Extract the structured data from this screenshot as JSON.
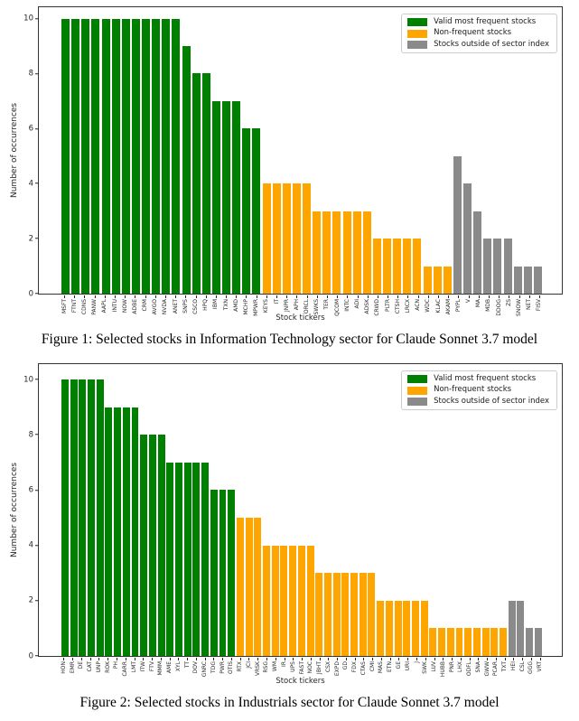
{
  "captions": {
    "figure1": "Figure 1: Selected stocks in Information Technology sector for Claude Sonnet 3.7 model",
    "figure2": "Figure 2: Selected stocks in Industrials sector for Claude Sonnet 3.7 model"
  },
  "colors": {
    "valid": "#008000",
    "nonfrequent": "#FFA500",
    "outside": "#8a8a8a"
  },
  "chart_data": [
    {
      "type": "bar",
      "title": "",
      "xlabel": "Stock tickers",
      "ylabel": "Number of occurrences",
      "ylim": [
        0,
        10
      ],
      "yticks": [
        0,
        2,
        4,
        6,
        8,
        10
      ],
      "grid": false,
      "legend_position": "top-right",
      "legend": [
        {
          "key": "valid",
          "label": "Valid most frequent stocks",
          "color": "#008000"
        },
        {
          "key": "nonfrequent",
          "label": "Non-frequent stocks",
          "color": "#FFA500"
        },
        {
          "key": "outside",
          "label": "Stocks outside of sector index",
          "color": "#8a8a8a"
        }
      ],
      "bars": [
        {
          "ticker": "MSFT",
          "value": 10,
          "group": "valid"
        },
        {
          "ticker": "FTNT",
          "value": 10,
          "group": "valid"
        },
        {
          "ticker": "CDNS",
          "value": 10,
          "group": "valid"
        },
        {
          "ticker": "PANW",
          "value": 10,
          "group": "valid"
        },
        {
          "ticker": "AAPL",
          "value": 10,
          "group": "valid"
        },
        {
          "ticker": "INTU",
          "value": 10,
          "group": "valid"
        },
        {
          "ticker": "NOW",
          "value": 10,
          "group": "valid"
        },
        {
          "ticker": "ADBE",
          "value": 10,
          "group": "valid"
        },
        {
          "ticker": "CRM",
          "value": 10,
          "group": "valid"
        },
        {
          "ticker": "AVGO",
          "value": 10,
          "group": "valid"
        },
        {
          "ticker": "NVDA",
          "value": 10,
          "group": "valid"
        },
        {
          "ticker": "ANET",
          "value": 10,
          "group": "valid"
        },
        {
          "ticker": "SNPS",
          "value": 9,
          "group": "valid"
        },
        {
          "ticker": "CSCO",
          "value": 8,
          "group": "valid"
        },
        {
          "ticker": "HPQ",
          "value": 8,
          "group": "valid"
        },
        {
          "ticker": "IBM",
          "value": 7,
          "group": "valid"
        },
        {
          "ticker": "TXN",
          "value": 7,
          "group": "valid"
        },
        {
          "ticker": "AMD",
          "value": 7,
          "group": "valid"
        },
        {
          "ticker": "MCHP",
          "value": 6,
          "group": "valid"
        },
        {
          "ticker": "MPWR",
          "value": 6,
          "group": "valid"
        },
        {
          "ticker": "KEYS",
          "value": 4,
          "group": "nonfrequent"
        },
        {
          "ticker": "IT",
          "value": 4,
          "group": "nonfrequent"
        },
        {
          "ticker": "JNPR",
          "value": 4,
          "group": "nonfrequent"
        },
        {
          "ticker": "APH",
          "value": 4,
          "group": "nonfrequent"
        },
        {
          "ticker": "ORCL",
          "value": 4,
          "group": "nonfrequent"
        },
        {
          "ticker": "SWKS",
          "value": 3,
          "group": "nonfrequent"
        },
        {
          "ticker": "TER",
          "value": 3,
          "group": "nonfrequent"
        },
        {
          "ticker": "QCOM",
          "value": 3,
          "group": "nonfrequent"
        },
        {
          "ticker": "INTC",
          "value": 3,
          "group": "nonfrequent"
        },
        {
          "ticker": "ADI",
          "value": 3,
          "group": "nonfrequent"
        },
        {
          "ticker": "ADSK",
          "value": 3,
          "group": "nonfrequent"
        },
        {
          "ticker": "CRWD",
          "value": 2,
          "group": "nonfrequent"
        },
        {
          "ticker": "PLTR",
          "value": 2,
          "group": "nonfrequent"
        },
        {
          "ticker": "CTSH",
          "value": 2,
          "group": "nonfrequent"
        },
        {
          "ticker": "LRCX",
          "value": 2,
          "group": "nonfrequent"
        },
        {
          "ticker": "ACN",
          "value": 2,
          "group": "nonfrequent"
        },
        {
          "ticker": "WDC",
          "value": 1,
          "group": "nonfrequent"
        },
        {
          "ticker": "KLAC",
          "value": 1,
          "group": "nonfrequent"
        },
        {
          "ticker": "AKAM",
          "value": 1,
          "group": "nonfrequent"
        },
        {
          "ticker": "PYPL",
          "value": 5,
          "group": "outside"
        },
        {
          "ticker": "V",
          "value": 4,
          "group": "outside"
        },
        {
          "ticker": "MA",
          "value": 3,
          "group": "outside"
        },
        {
          "ticker": "MDB",
          "value": 2,
          "group": "outside"
        },
        {
          "ticker": "DDOG",
          "value": 2,
          "group": "outside"
        },
        {
          "ticker": "ZS",
          "value": 2,
          "group": "outside"
        },
        {
          "ticker": "SNOW",
          "value": 1,
          "group": "outside"
        },
        {
          "ticker": "NET",
          "value": 1,
          "group": "outside"
        },
        {
          "ticker": "FISV",
          "value": 1,
          "group": "outside"
        }
      ]
    },
    {
      "type": "bar",
      "title": "",
      "xlabel": "Stock tickers",
      "ylabel": "Number of occurrences",
      "ylim": [
        0,
        10
      ],
      "yticks": [
        0,
        2,
        4,
        6,
        8,
        10
      ],
      "grid": false,
      "legend_position": "top-right",
      "legend": [
        {
          "key": "valid",
          "label": "Valid most frequent stocks",
          "color": "#008000"
        },
        {
          "key": "nonfrequent",
          "label": "Non-frequent stocks",
          "color": "#FFA500"
        },
        {
          "key": "outside",
          "label": "Stocks outside of sector index",
          "color": "#8a8a8a"
        }
      ],
      "bars": [
        {
          "ticker": "HON",
          "value": 10,
          "group": "valid"
        },
        {
          "ticker": "EMR",
          "value": 10,
          "group": "valid"
        },
        {
          "ticker": "DE",
          "value": 10,
          "group": "valid"
        },
        {
          "ticker": "CAT",
          "value": 10,
          "group": "valid"
        },
        {
          "ticker": "UNP",
          "value": 10,
          "group": "valid"
        },
        {
          "ticker": "ROK",
          "value": 9,
          "group": "valid"
        },
        {
          "ticker": "PH",
          "value": 9,
          "group": "valid"
        },
        {
          "ticker": "CARR",
          "value": 9,
          "group": "valid"
        },
        {
          "ticker": "LMT",
          "value": 9,
          "group": "valid"
        },
        {
          "ticker": "ITW",
          "value": 8,
          "group": "valid"
        },
        {
          "ticker": "FTV",
          "value": 8,
          "group": "valid"
        },
        {
          "ticker": "MMM",
          "value": 8,
          "group": "valid"
        },
        {
          "ticker": "AME",
          "value": 7,
          "group": "valid"
        },
        {
          "ticker": "XYL",
          "value": 7,
          "group": "valid"
        },
        {
          "ticker": "TT",
          "value": 7,
          "group": "valid"
        },
        {
          "ticker": "DOV",
          "value": 7,
          "group": "valid"
        },
        {
          "ticker": "GNRC",
          "value": 7,
          "group": "valid"
        },
        {
          "ticker": "TDG",
          "value": 6,
          "group": "valid"
        },
        {
          "ticker": "PWR",
          "value": 6,
          "group": "valid"
        },
        {
          "ticker": "OTIS",
          "value": 6,
          "group": "valid"
        },
        {
          "ticker": "RTX",
          "value": 5,
          "group": "nonfrequent"
        },
        {
          "ticker": "JCI",
          "value": 5,
          "group": "nonfrequent"
        },
        {
          "ticker": "VRSK",
          "value": 5,
          "group": "nonfrequent"
        },
        {
          "ticker": "RSG",
          "value": 4,
          "group": "nonfrequent"
        },
        {
          "ticker": "WM",
          "value": 4,
          "group": "nonfrequent"
        },
        {
          "ticker": "IR",
          "value": 4,
          "group": "nonfrequent"
        },
        {
          "ticker": "UPS",
          "value": 4,
          "group": "nonfrequent"
        },
        {
          "ticker": "FAST",
          "value": 4,
          "group": "nonfrequent"
        },
        {
          "ticker": "NOC",
          "value": 4,
          "group": "nonfrequent"
        },
        {
          "ticker": "JBHT",
          "value": 3,
          "group": "nonfrequent"
        },
        {
          "ticker": "CSX",
          "value": 3,
          "group": "nonfrequent"
        },
        {
          "ticker": "EXPD",
          "value": 3,
          "group": "nonfrequent"
        },
        {
          "ticker": "GD",
          "value": 3,
          "group": "nonfrequent"
        },
        {
          "ticker": "FDX",
          "value": 3,
          "group": "nonfrequent"
        },
        {
          "ticker": "CTAS",
          "value": 3,
          "group": "nonfrequent"
        },
        {
          "ticker": "CMI",
          "value": 3,
          "group": "nonfrequent"
        },
        {
          "ticker": "MAS",
          "value": 2,
          "group": "nonfrequent"
        },
        {
          "ticker": "ETN",
          "value": 2,
          "group": "nonfrequent"
        },
        {
          "ticker": "GE",
          "value": 2,
          "group": "nonfrequent"
        },
        {
          "ticker": "URI",
          "value": 2,
          "group": "nonfrequent"
        },
        {
          "ticker": "J",
          "value": 2,
          "group": "nonfrequent"
        },
        {
          "ticker": "SWK",
          "value": 2,
          "group": "nonfrequent"
        },
        {
          "ticker": "LUV",
          "value": 1,
          "group": "nonfrequent"
        },
        {
          "ticker": "HUBB",
          "value": 1,
          "group": "nonfrequent"
        },
        {
          "ticker": "PNR",
          "value": 1,
          "group": "nonfrequent"
        },
        {
          "ticker": "LHX",
          "value": 1,
          "group": "nonfrequent"
        },
        {
          "ticker": "ODFL",
          "value": 1,
          "group": "nonfrequent"
        },
        {
          "ticker": "SNA",
          "value": 1,
          "group": "nonfrequent"
        },
        {
          "ticker": "GWW",
          "value": 1,
          "group": "nonfrequent"
        },
        {
          "ticker": "PCAR",
          "value": 1,
          "group": "nonfrequent"
        },
        {
          "ticker": "TXT",
          "value": 1,
          "group": "nonfrequent"
        },
        {
          "ticker": "HEI",
          "value": 2,
          "group": "outside"
        },
        {
          "ticker": "CSL",
          "value": 2,
          "group": "outside"
        },
        {
          "ticker": "GGG",
          "value": 1,
          "group": "outside"
        },
        {
          "ticker": "VRT",
          "value": 1,
          "group": "outside"
        }
      ]
    }
  ]
}
